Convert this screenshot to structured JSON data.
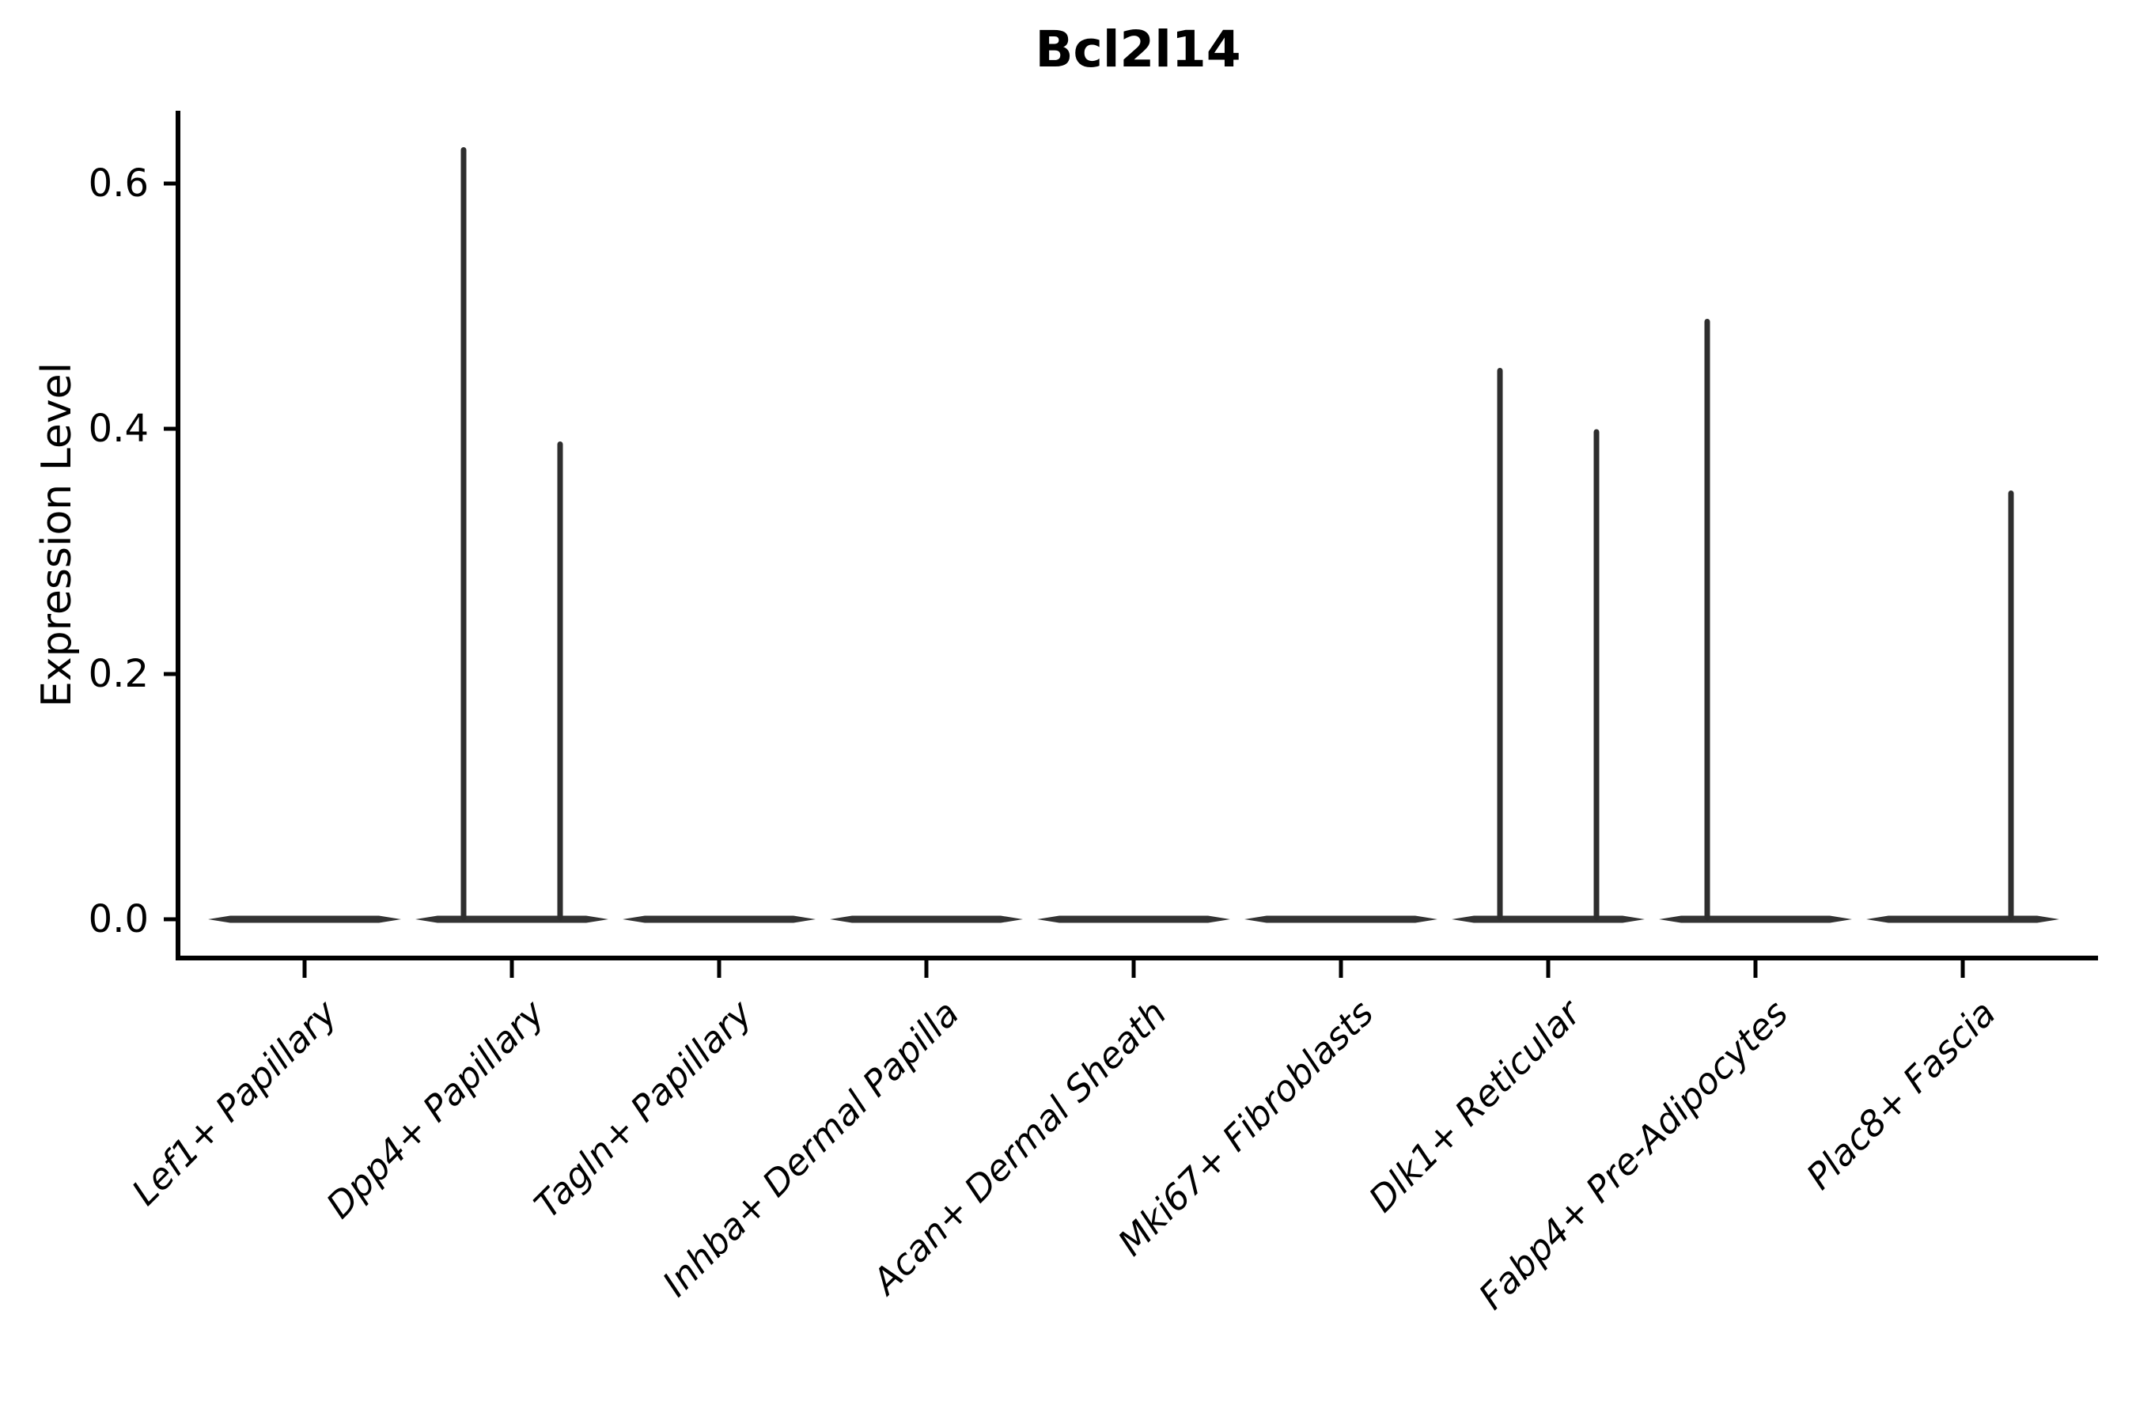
{
  "chart_data": {
    "type": "violin",
    "title": "Bcl2l14",
    "xlabel": "",
    "ylabel": "Expression Level",
    "yticks": [
      {
        "label": "0.0",
        "value": 0.0
      },
      {
        "label": "0.2",
        "value": 0.2
      },
      {
        "label": "0.4",
        "value": 0.4
      },
      {
        "label": "0.6",
        "value": 0.6
      }
    ],
    "ylim": [
      -0.02,
      0.66
    ],
    "grid": false,
    "legend": "none",
    "categories": [
      "Lef1+ Papillary",
      "Dpp4+ Papillary",
      "Tagln+ Papillary",
      "Inhba+ Dermal Papilla",
      "Acan+ Dermal Sheath",
      "Mki67+ Fibroblasts",
      "Dlk1+ Reticular",
      "Fabp4+ Pre-Adipocytes",
      "Plac8+ Fascia"
    ],
    "violins": [
      {
        "category": "Lef1+ Papillary",
        "baseline_value": 0.0,
        "spikes": []
      },
      {
        "category": "Dpp4+ Papillary",
        "baseline_value": 0.0,
        "spikes": [
          {
            "position": "left",
            "value": 0.63
          },
          {
            "position": "right",
            "value": 0.39
          }
        ]
      },
      {
        "category": "Tagln+ Papillary",
        "baseline_value": 0.0,
        "spikes": []
      },
      {
        "category": "Inhba+ Dermal Papilla",
        "baseline_value": 0.0,
        "spikes": []
      },
      {
        "category": "Acan+ Dermal Sheath",
        "baseline_value": 0.0,
        "spikes": []
      },
      {
        "category": "Mki67+ Fibroblasts",
        "baseline_value": 0.0,
        "spikes": []
      },
      {
        "category": "Dlk1+ Reticular",
        "baseline_value": 0.0,
        "spikes": [
          {
            "position": "left",
            "value": 0.45
          },
          {
            "position": "right",
            "value": 0.4
          }
        ]
      },
      {
        "category": "Fabp4+ Pre-Adipocytes",
        "baseline_value": 0.0,
        "spikes": [
          {
            "position": "left",
            "value": 0.49
          }
        ]
      },
      {
        "category": "Plac8+ Fascia",
        "baseline_value": 0.0,
        "spikes": [
          {
            "position": "right",
            "value": 0.35
          }
        ]
      }
    ],
    "colors": {
      "violin_stroke": "#333333",
      "spike_stroke": "#2e2e2e",
      "axis": "#000000",
      "text": "#000000",
      "background": "#ffffff"
    }
  }
}
